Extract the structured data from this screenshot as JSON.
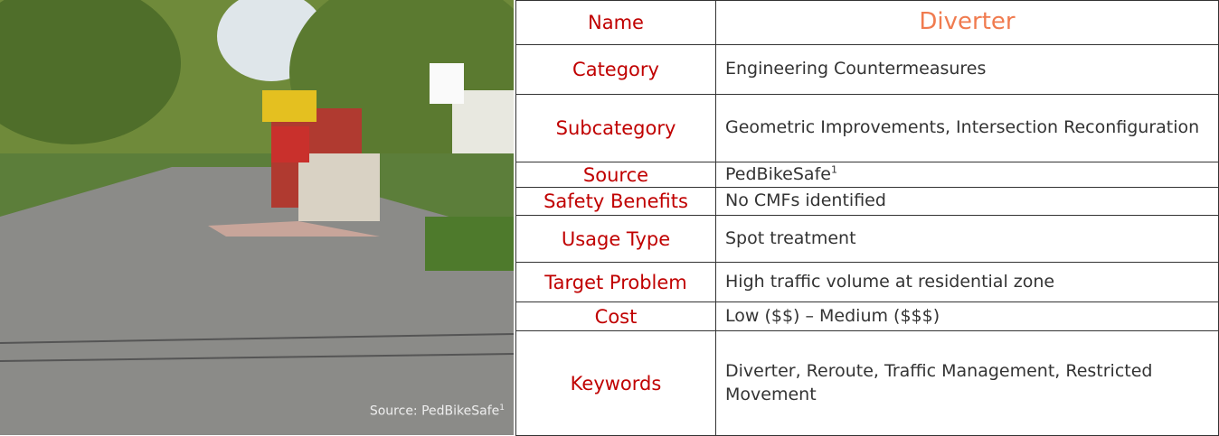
{
  "image": {
    "caption": "Source: PedBikeSafe",
    "caption_note": "1"
  },
  "table": {
    "rows": [
      {
        "label": "Name",
        "value": "Diverter"
      },
      {
        "label": "Category",
        "value": "Engineering Countermeasures"
      },
      {
        "label": "Subcategory",
        "value": "Geometric Improvements, Intersection Reconfiguration"
      },
      {
        "label": "Source",
        "value": "PedBikeSafe",
        "note": "1"
      },
      {
        "label": "Safety Benefits",
        "value": "No CMFs identified"
      },
      {
        "label": "Usage Type",
        "value": "Spot treatment"
      },
      {
        "label": "Target Problem",
        "value": "High traffic volume at residential zone"
      },
      {
        "label": "Cost",
        "value": "Low ($$) – Medium ($$$)"
      },
      {
        "label": "Keywords",
        "value": "Diverter, Reroute, Traffic Management, Restricted Movement"
      }
    ]
  }
}
